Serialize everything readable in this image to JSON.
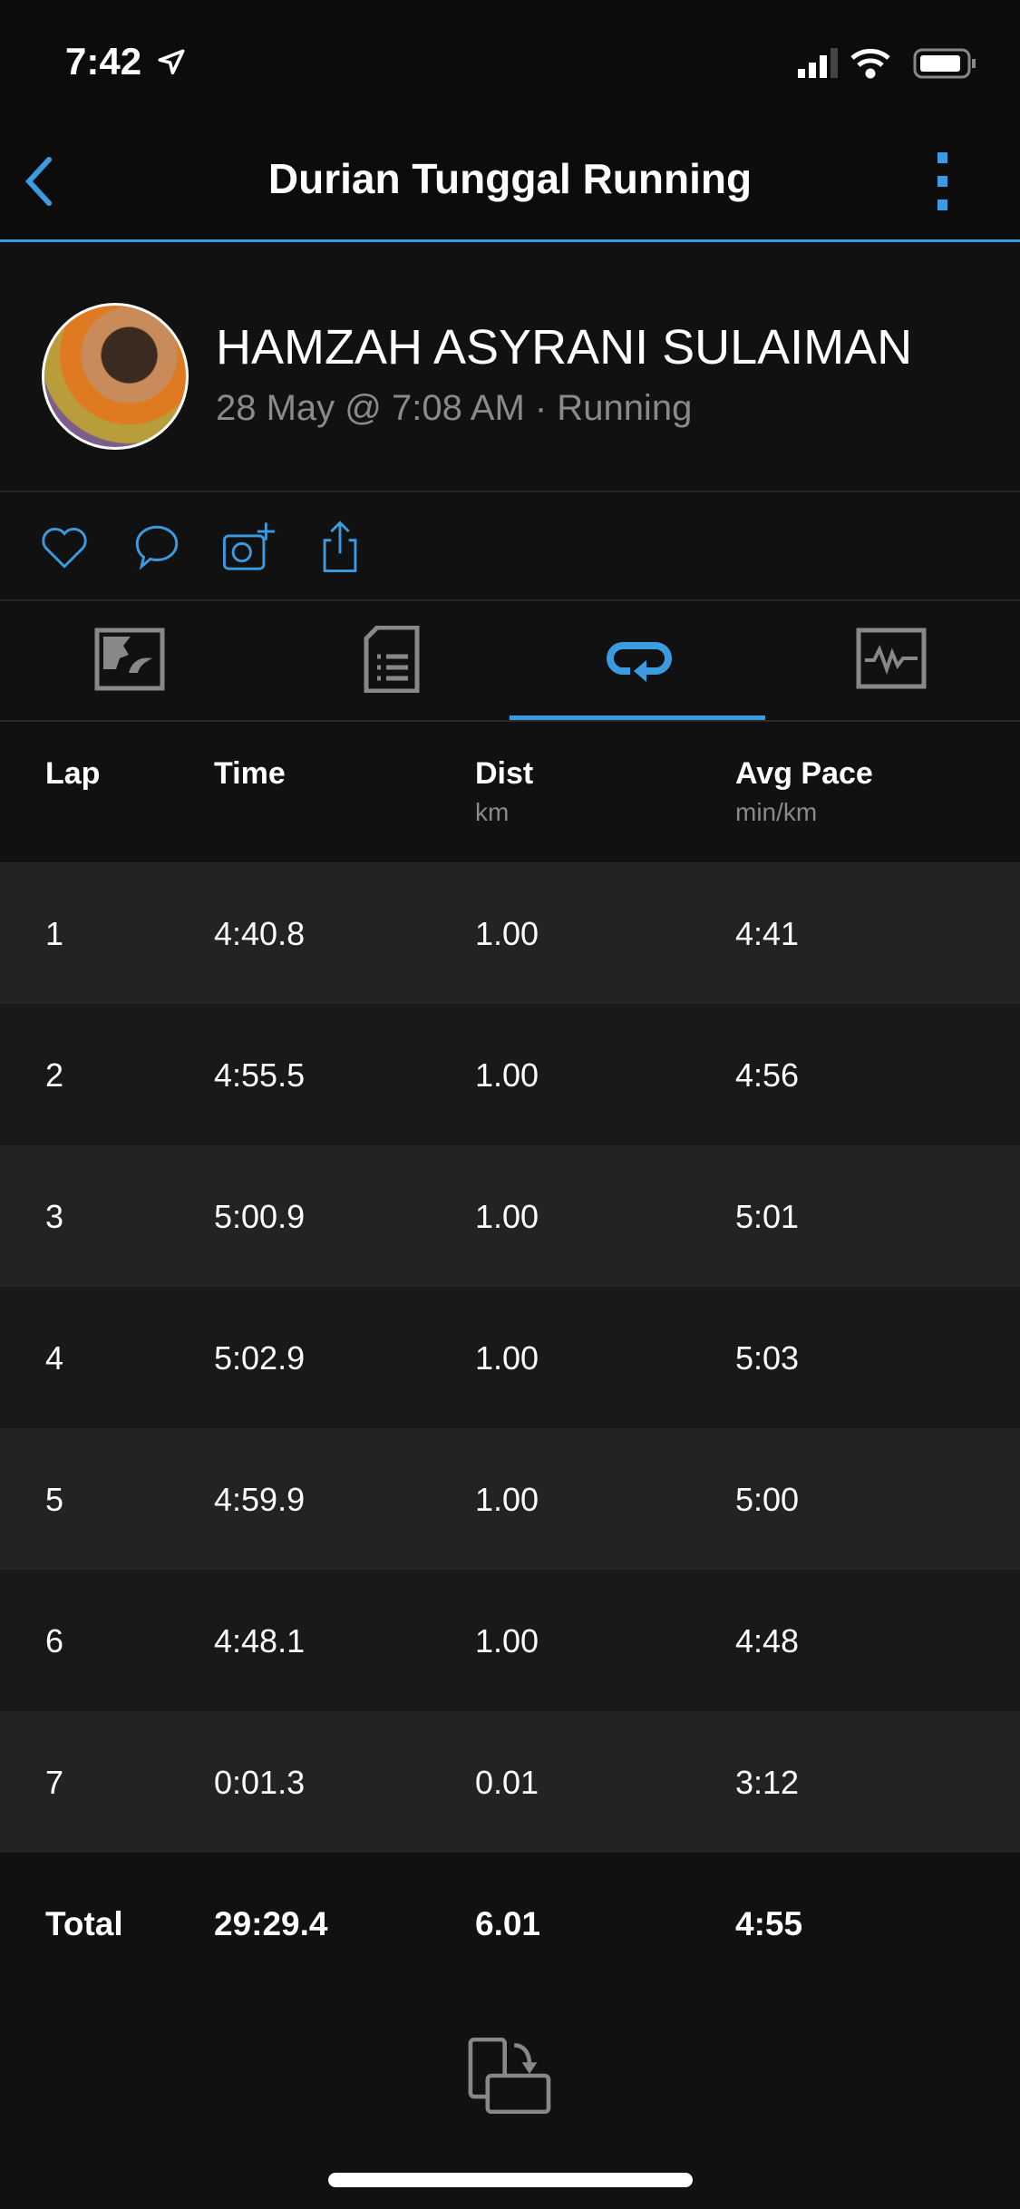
{
  "status_bar": {
    "time": "7:42"
  },
  "nav": {
    "title": "Durian Tunggal Running"
  },
  "activity": {
    "user_name": "HAMZAH ASYRANI SULAIMAN",
    "subtitle": "28 May @ 7:08 AM · Running"
  },
  "accent": "#3b9be0",
  "tabs": [
    {
      "icon": "map-icon",
      "active": false
    },
    {
      "icon": "stats-list-icon",
      "active": false
    },
    {
      "icon": "laps-icon",
      "active": true
    },
    {
      "icon": "chart-icon",
      "active": false
    }
  ],
  "table": {
    "headers": [
      {
        "label": "Lap",
        "unit": ""
      },
      {
        "label": "Time",
        "unit": ""
      },
      {
        "label": "Dist",
        "unit": "km"
      },
      {
        "label": "Avg Pace",
        "unit": "min/km"
      }
    ],
    "rows": [
      [
        "1",
        "4:40.8",
        "1.00",
        "4:41"
      ],
      [
        "2",
        "4:55.5",
        "1.00",
        "4:56"
      ],
      [
        "3",
        "5:00.9",
        "1.00",
        "5:01"
      ],
      [
        "4",
        "5:02.9",
        "1.00",
        "5:03"
      ],
      [
        "5",
        "4:59.9",
        "1.00",
        "5:00"
      ],
      [
        "6",
        "4:48.1",
        "1.00",
        "4:48"
      ],
      [
        "7",
        "0:01.3",
        "0.01",
        "3:12"
      ]
    ],
    "total": [
      "Total",
      "29:29.4",
      "6.01",
      "4:55"
    ]
  }
}
